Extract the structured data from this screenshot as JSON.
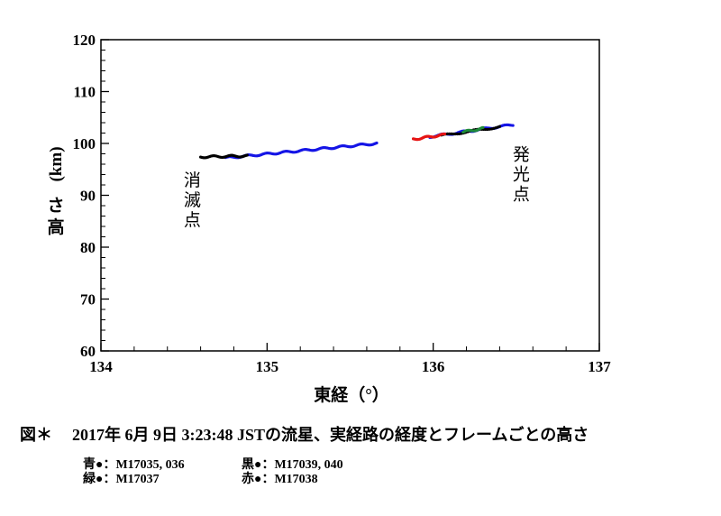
{
  "chart_data": {
    "type": "scatter",
    "xlabel": "東経（°）",
    "ylabel_chars": [
      "高",
      "さ"
    ],
    "ylabel_unit": "(km)",
    "xlim": [
      134,
      137
    ],
    "ylim": [
      60,
      120
    ],
    "xticks": [
      134,
      135,
      136,
      137
    ],
    "yticks": [
      60,
      70,
      80,
      90,
      100,
      110,
      120
    ],
    "grid": false,
    "annotations": [
      {
        "text": "消滅点",
        "x": 134.55,
        "y": 88
      },
      {
        "text": "発光点",
        "x": 136.53,
        "y": 93
      }
    ],
    "series": [
      {
        "name": "青●",
        "color": "#1515e6",
        "segments": [
          {
            "x0": 134.75,
            "y0": 97.2,
            "x1": 135.66,
            "y1": 100.0,
            "n": 120
          },
          {
            "x0": 135.98,
            "y0": 101.3,
            "x1": 136.48,
            "y1": 103.6,
            "n": 60
          }
        ]
      },
      {
        "name": "黒●",
        "color": "#000000",
        "segments": [
          {
            "x0": 134.6,
            "y0": 97.4,
            "x1": 134.88,
            "y1": 97.6,
            "n": 40
          },
          {
            "x0": 136.05,
            "y0": 101.5,
            "x1": 136.4,
            "y1": 103.2,
            "n": 30
          }
        ]
      },
      {
        "name": "緑●",
        "color": "#1f8a3a",
        "segments": [
          {
            "x0": 136.18,
            "y0": 102.2,
            "x1": 136.3,
            "y1": 102.9,
            "n": 20
          }
        ]
      },
      {
        "name": "赤●",
        "color": "#e61515",
        "segments": [
          {
            "x0": 135.88,
            "y0": 100.8,
            "x1": 136.07,
            "y1": 101.7,
            "n": 30
          }
        ]
      }
    ]
  },
  "caption": {
    "prefix": "図＊",
    "text": "2017年 6月 9日 3:23:48 JSTの流星、実経路の経度とフレームごとの高さ"
  },
  "legend": {
    "blue": "青●：M17035, 036",
    "black": "黒●：M17039, 040",
    "green": "緑●：M17037",
    "red": "赤●：M17038"
  }
}
